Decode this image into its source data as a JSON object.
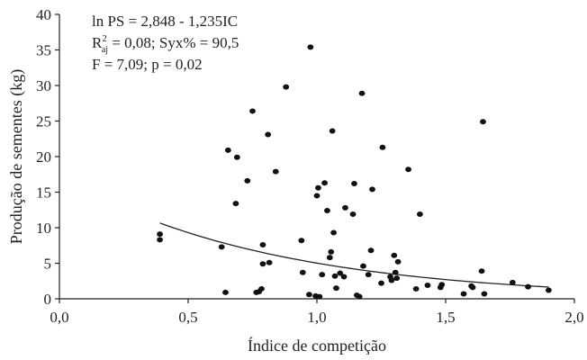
{
  "chart_data": {
    "type": "scatter",
    "xlabel": "Índice de competição",
    "ylabel": "Produção de sementes (kg)",
    "xlim": [
      0,
      2
    ],
    "ylim": [
      0,
      40
    ],
    "xticks": [
      "0,0",
      "0,5",
      "1,0",
      "1,5",
      "2,0"
    ],
    "yticks": [
      "0",
      "5",
      "10",
      "15",
      "20",
      "25",
      "30",
      "35",
      "40"
    ],
    "grid": false,
    "annotation": {
      "line1": "ln PS = 2,848 - 1,235IC",
      "line2_r": "R",
      "line2_sup": "2",
      "line2_sub": "aj",
      "line2_rest": " = 0,08; Syx% = 90,5",
      "line3": "F = 7,09; p = 0,02"
    },
    "points": [
      {
        "x": 0.39,
        "y": 9.1
      },
      {
        "x": 0.39,
        "y": 8.3
      },
      {
        "x": 0.63,
        "y": 7.3
      },
      {
        "x": 0.645,
        "y": 0.9
      },
      {
        "x": 0.655,
        "y": 20.9
      },
      {
        "x": 0.685,
        "y": 13.4
      },
      {
        "x": 0.69,
        "y": 19.9
      },
      {
        "x": 0.73,
        "y": 16.6
      },
      {
        "x": 0.75,
        "y": 26.4
      },
      {
        "x": 0.765,
        "y": 0.9
      },
      {
        "x": 0.775,
        "y": 1.0
      },
      {
        "x": 0.785,
        "y": 1.4
      },
      {
        "x": 0.79,
        "y": 7.6
      },
      {
        "x": 0.79,
        "y": 4.9
      },
      {
        "x": 0.81,
        "y": 23.1
      },
      {
        "x": 0.815,
        "y": 5.1
      },
      {
        "x": 0.84,
        "y": 17.9
      },
      {
        "x": 0.88,
        "y": 29.8
      },
      {
        "x": 0.94,
        "y": 8.2
      },
      {
        "x": 0.945,
        "y": 3.7
      },
      {
        "x": 0.97,
        "y": 0.6
      },
      {
        "x": 0.975,
        "y": 35.4
      },
      {
        "x": 0.995,
        "y": 0.4
      },
      {
        "x": 1.0,
        "y": 14.5
      },
      {
        "x": 1.005,
        "y": 15.6
      },
      {
        "x": 1.01,
        "y": 0.3
      },
      {
        "x": 1.02,
        "y": 3.4
      },
      {
        "x": 1.03,
        "y": 16.3
      },
      {
        "x": 1.04,
        "y": 12.4
      },
      {
        "x": 1.05,
        "y": 5.8
      },
      {
        "x": 1.055,
        "y": 6.6
      },
      {
        "x": 1.06,
        "y": 23.6
      },
      {
        "x": 1.065,
        "y": 9.3
      },
      {
        "x": 1.07,
        "y": 3.2
      },
      {
        "x": 1.075,
        "y": 1.5
      },
      {
        "x": 1.09,
        "y": 3.6
      },
      {
        "x": 1.105,
        "y": 3.1
      },
      {
        "x": 1.11,
        "y": 12.8
      },
      {
        "x": 1.14,
        "y": 11.9
      },
      {
        "x": 1.145,
        "y": 16.2
      },
      {
        "x": 1.155,
        "y": 0.5
      },
      {
        "x": 1.165,
        "y": 0.3
      },
      {
        "x": 1.175,
        "y": 28.9
      },
      {
        "x": 1.18,
        "y": 4.6
      },
      {
        "x": 1.2,
        "y": 3.4
      },
      {
        "x": 1.21,
        "y": 6.8
      },
      {
        "x": 1.215,
        "y": 15.4
      },
      {
        "x": 1.25,
        "y": 2.2
      },
      {
        "x": 1.255,
        "y": 21.3
      },
      {
        "x": 1.285,
        "y": 3.1
      },
      {
        "x": 1.29,
        "y": 2.6
      },
      {
        "x": 1.3,
        "y": 6.1
      },
      {
        "x": 1.305,
        "y": 3.7
      },
      {
        "x": 1.31,
        "y": 2.9
      },
      {
        "x": 1.315,
        "y": 5.2
      },
      {
        "x": 1.355,
        "y": 18.2
      },
      {
        "x": 1.385,
        "y": 1.4
      },
      {
        "x": 1.4,
        "y": 11.9
      },
      {
        "x": 1.43,
        "y": 1.9
      },
      {
        "x": 1.48,
        "y": 1.6
      },
      {
        "x": 1.485,
        "y": 2.0
      },
      {
        "x": 1.57,
        "y": 0.7
      },
      {
        "x": 1.6,
        "y": 1.8
      },
      {
        "x": 1.605,
        "y": 1.6
      },
      {
        "x": 1.64,
        "y": 3.9
      },
      {
        "x": 1.645,
        "y": 24.9
      },
      {
        "x": 1.65,
        "y": 0.7
      },
      {
        "x": 1.76,
        "y": 2.3
      },
      {
        "x": 1.82,
        "y": 1.7
      },
      {
        "x": 1.9,
        "y": 1.2
      }
    ],
    "fit_curve": {
      "equation": "ln PS = 2,848 - 1,235IC",
      "x_range": [
        0.39,
        1.9
      ]
    }
  }
}
